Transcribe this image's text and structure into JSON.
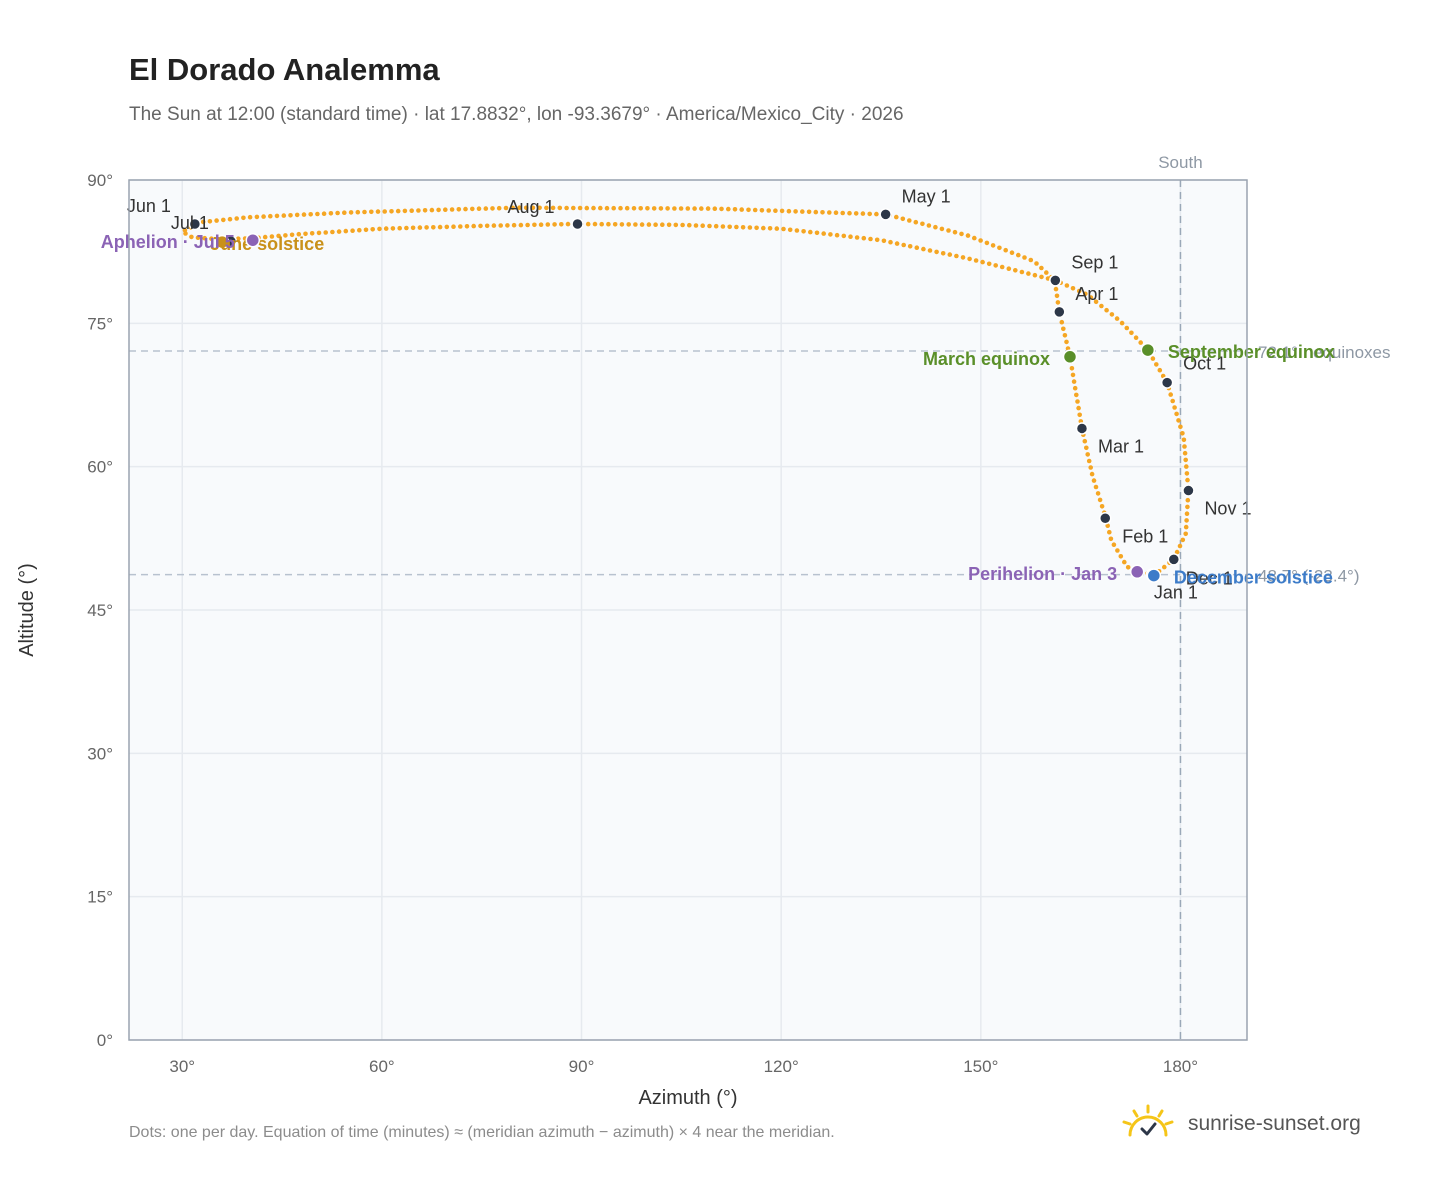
{
  "header": {
    "title": "El Dorado Analemma",
    "subtitle": "The Sun at 12:00 (standard time) · lat 17.8832°, lon -93.3679° · America/Mexico_City · 2026"
  },
  "footer": {
    "note": "Dots: one per day. Equation of time (minutes) ≈ (meridian azimuth − azimuth) × 4 near the meridian.",
    "brand": "sunrise-sunset.org"
  },
  "colors": {
    "path": "#f5a623",
    "marker": "#2d3748",
    "equinox": "#5a8f29",
    "december": "#3d7cc9",
    "june": "#c9911a",
    "apsis": "#8b63b5",
    "grid": "#e6eaef",
    "frame": "#9aa3b0",
    "plot_bg": "#f8fafc"
  },
  "icons": {
    "brand": "sun-check-icon"
  },
  "chart_data": {
    "type": "scatter",
    "xlabel": "Azimuth (°)",
    "ylabel": "Altitude (°)",
    "xlim": [
      22,
      190
    ],
    "ylim": [
      0,
      90
    ],
    "x_ticks": [
      {
        "value": 30,
        "label": "30°"
      },
      {
        "value": 60,
        "label": "60°"
      },
      {
        "value": 90,
        "label": "90°"
      },
      {
        "value": 120,
        "label": "120°"
      },
      {
        "value": 150,
        "label": "150°"
      },
      {
        "value": 180,
        "label": "180°"
      }
    ],
    "y_ticks": [
      {
        "value": 0,
        "label": "0°"
      },
      {
        "value": 15,
        "label": "15°"
      },
      {
        "value": 30,
        "label": "30°"
      },
      {
        "value": 45,
        "label": "45°"
      },
      {
        "value": 60,
        "label": "60°"
      },
      {
        "value": 75,
        "label": "75°"
      },
      {
        "value": 90,
        "label": "90°"
      }
    ],
    "grid": true,
    "meridian": {
      "azimuth": 180,
      "label": "South"
    },
    "reference_lines": [
      {
        "altitude": 72.1,
        "label": "72.1° · equinoxes"
      },
      {
        "altitude": 48.7,
        "label": "48.7° (-23.4°)"
      }
    ],
    "path_knots": [
      {
        "x": 176.0,
        "y": 48.6
      },
      {
        "x": 172.0,
        "y": 49.5
      },
      {
        "x": 169.6,
        "y": 52.3
      },
      {
        "x": 168.8,
        "y": 54.6
      },
      {
        "x": 166.8,
        "y": 59.0
      },
      {
        "x": 165.2,
        "y": 64.0
      },
      {
        "x": 163.4,
        "y": 71.5
      },
      {
        "x": 161.8,
        "y": 76.2
      },
      {
        "x": 161.1,
        "y": 79.5
      },
      {
        "x": 158.0,
        "y": 81.5
      },
      {
        "x": 148.0,
        "y": 84.2
      },
      {
        "x": 135.7,
        "y": 86.4
      },
      {
        "x": 110.0,
        "y": 87.0
      },
      {
        "x": 80.0,
        "y": 87.1
      },
      {
        "x": 55.0,
        "y": 86.6
      },
      {
        "x": 40.0,
        "y": 86.1
      },
      {
        "x": 33.0,
        "y": 85.6
      },
      {
        "x": 30.0,
        "y": 84.6
      },
      {
        "x": 31.5,
        "y": 84.0
      },
      {
        "x": 35.5,
        "y": 83.8
      },
      {
        "x": 40.5,
        "y": 83.9
      },
      {
        "x": 47.0,
        "y": 84.3
      },
      {
        "x": 60.0,
        "y": 84.9
      },
      {
        "x": 75.0,
        "y": 85.2
      },
      {
        "x": 89.4,
        "y": 85.4
      },
      {
        "x": 105.0,
        "y": 85.3
      },
      {
        "x": 120.0,
        "y": 84.9
      },
      {
        "x": 135.0,
        "y": 83.7
      },
      {
        "x": 148.0,
        "y": 81.8
      },
      {
        "x": 161.2,
        "y": 79.5
      },
      {
        "x": 166.0,
        "y": 78.0
      },
      {
        "x": 171.0,
        "y": 75.2
      },
      {
        "x": 175.1,
        "y": 72.2
      },
      {
        "x": 178.0,
        "y": 68.8
      },
      {
        "x": 180.5,
        "y": 63.0
      },
      {
        "x": 181.2,
        "y": 57.5
      },
      {
        "x": 180.8,
        "y": 53.0
      },
      {
        "x": 179.0,
        "y": 50.3
      },
      {
        "x": 176.0,
        "y": 48.6
      }
    ],
    "month_markers": [
      {
        "label": "Jan 1",
        "x": 175.7,
        "y": 48.7
      },
      {
        "label": "Feb 1",
        "x": 168.7,
        "y": 54.6
      },
      {
        "label": "Mar 1",
        "x": 165.2,
        "y": 64.0
      },
      {
        "label": "Apr 1",
        "x": 161.8,
        "y": 76.2
      },
      {
        "label": "May 1",
        "x": 135.7,
        "y": 86.4
      },
      {
        "label": "Jun 1",
        "x": 31.9,
        "y": 85.4
      },
      {
        "label": "Jul 1",
        "x": 37.3,
        "y": 83.6
      },
      {
        "label": "Aug 1",
        "x": 89.4,
        "y": 85.4
      },
      {
        "label": "Sep 1",
        "x": 161.2,
        "y": 79.5
      },
      {
        "label": "Oct 1",
        "x": 178.0,
        "y": 68.8
      },
      {
        "label": "Nov 1",
        "x": 181.2,
        "y": 57.5
      },
      {
        "label": "Dec 1",
        "x": 179.0,
        "y": 50.3
      }
    ],
    "events": [
      {
        "label": "March equinox",
        "x": 163.4,
        "y": 71.5,
        "kind": "equinox"
      },
      {
        "label": "September equinox",
        "x": 175.1,
        "y": 72.2,
        "kind": "equinox"
      },
      {
        "label": "June solstice",
        "x": 36.0,
        "y": 83.5,
        "kind": "june"
      },
      {
        "label": "December solstice",
        "x": 176.0,
        "y": 48.6,
        "kind": "december"
      },
      {
        "label": "Perihelion · Jan 3",
        "x": 173.5,
        "y": 49.0,
        "kind": "apsis"
      },
      {
        "label": "Aphelion · Jul 5",
        "x": 40.6,
        "y": 83.7,
        "kind": "apsis"
      }
    ]
  }
}
